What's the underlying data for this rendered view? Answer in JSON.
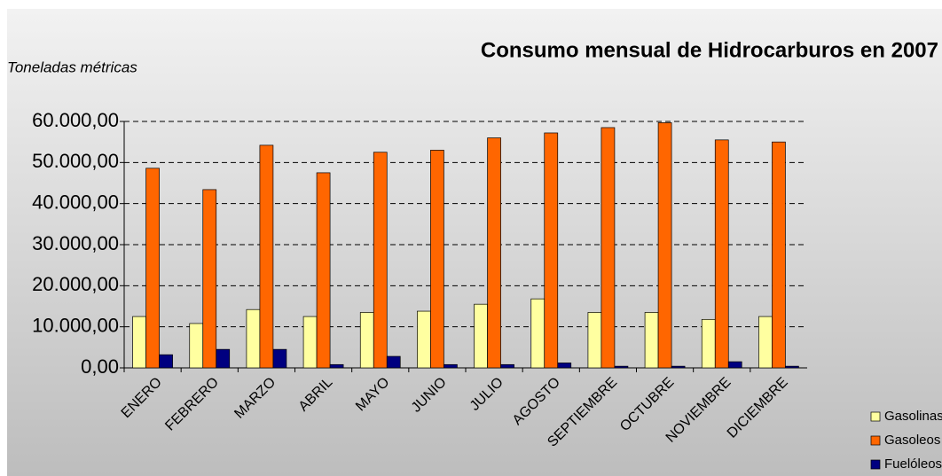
{
  "chart_data": {
    "type": "bar",
    "title": "Consumo mensual de Hidrocarburos en 2007",
    "subtitle": "Toneladas métricas",
    "categories": [
      "ENERO",
      "FEBRERO",
      "MARZO",
      "ABRIL",
      "MAYO",
      "JUNIO",
      "JULIO",
      "AGOSTO",
      "SEPTIEMBRE",
      "OCTUBRE",
      "NOVIEMBRE",
      "DICIEMBRE"
    ],
    "series": [
      {
        "name": "Gasolinas",
        "color": "#ffffa0",
        "values": [
          12500,
          10800,
          14200,
          12500,
          13500,
          13800,
          15500,
          16800,
          13500,
          13500,
          11800,
          12500
        ]
      },
      {
        "name": "Gasoleos",
        "color": "#ff6600",
        "values": [
          48600,
          43400,
          54200,
          47500,
          52500,
          53000,
          56000,
          57200,
          58500,
          59700,
          55500,
          55000
        ]
      },
      {
        "name": "Fuelóleos",
        "color": "#000080",
        "values": [
          3200,
          4500,
          4500,
          800,
          2800,
          800,
          800,
          1200,
          400,
          400,
          1500,
          400
        ]
      }
    ],
    "ylim": [
      0,
      60000
    ],
    "yticks": [
      {
        "value": 0,
        "label": "0,00"
      },
      {
        "value": 10000,
        "label": "10.000,00"
      },
      {
        "value": 20000,
        "label": "20.000,00"
      },
      {
        "value": 30000,
        "label": "30.000,00"
      },
      {
        "value": 40000,
        "label": "40.000,00"
      },
      {
        "value": 50000,
        "label": "50.000,00"
      },
      {
        "value": 60000,
        "label": "60.000,00"
      }
    ],
    "grid": true,
    "legend": "bottom-right"
  }
}
